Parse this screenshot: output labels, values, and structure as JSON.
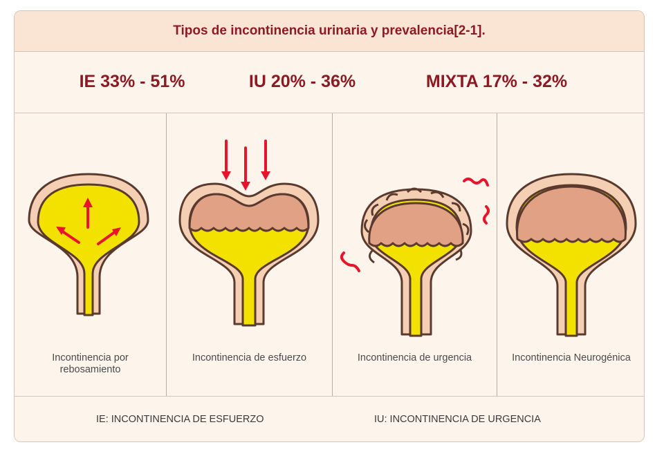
{
  "title": "Tipos de incontinencia urinaria y prevalencia[2-1].",
  "stats": [
    {
      "label": "IE 33% - 51%"
    },
    {
      "label": "IU 20% - 36%"
    },
    {
      "label": "MIXTA 17% - 32%"
    }
  ],
  "panels": [
    {
      "label": "Incontinencia por rebosamiento",
      "illustration": "bladder-overflow-icon"
    },
    {
      "label": "Incontinencia de esfuerzo",
      "illustration": "bladder-stress-icon"
    },
    {
      "label": "Incontinencia de urgencia",
      "illustration": "bladder-urge-icon"
    },
    {
      "label": "Incontinencia Neurogénica",
      "illustration": "bladder-neurogenic-icon"
    }
  ],
  "legend": [
    {
      "text": "IE: INCONTINENCIA DE ESFUERZO"
    },
    {
      "text": "IU: INCONTINENCIA DE URGENCIA"
    }
  ],
  "colors": {
    "title": "#8c1a22",
    "wall": "#f5cfb3",
    "outline": "#5a3a2e",
    "urine": "#f3e100",
    "tissue": "#e0a184",
    "arrow": "#e8142c",
    "background": "#fdf4ec"
  }
}
